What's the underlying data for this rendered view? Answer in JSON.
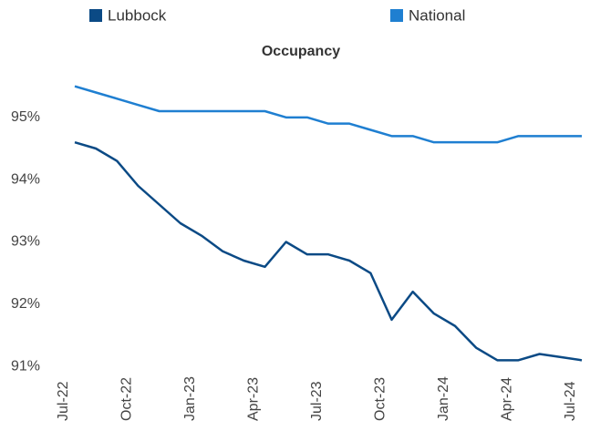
{
  "chart_data": {
    "type": "line",
    "title": "Occupancy",
    "categories": [
      "Jul-22",
      null,
      null,
      "Oct-22",
      null,
      null,
      "Jan-23",
      null,
      null,
      "Apr-23",
      null,
      null,
      "Jul-23",
      null,
      null,
      "Oct-23",
      null,
      null,
      "Jan-24",
      null,
      null,
      "Apr-24",
      null,
      null,
      "Jul-24"
    ],
    "series": [
      {
        "name": "Lubbock",
        "color": "#0b4a85",
        "values": [
          94.6,
          94.5,
          94.3,
          93.9,
          93.6,
          93.3,
          93.1,
          92.85,
          92.7,
          92.6,
          93.0,
          92.8,
          92.8,
          92.7,
          92.5,
          91.75,
          92.2,
          91.85,
          91.65,
          91.3,
          91.1,
          91.1,
          91.2,
          91.15,
          91.1
        ]
      },
      {
        "name": "National",
        "color": "#1f7fd1",
        "values": [
          95.5,
          95.4,
          95.3,
          95.2,
          95.1,
          95.1,
          95.1,
          95.1,
          95.1,
          95.1,
          95.0,
          95.0,
          94.9,
          94.9,
          94.8,
          94.7,
          94.7,
          94.6,
          94.6,
          94.6,
          94.6,
          94.7,
          94.7,
          94.7,
          94.7
        ]
      }
    ],
    "ylim": [
      90.9,
      95.7
    ],
    "yticks": [
      {
        "value": 91,
        "label": "91%"
      },
      {
        "value": 92,
        "label": "92%"
      },
      {
        "value": 93,
        "label": "93%"
      },
      {
        "value": 94,
        "label": "94%"
      },
      {
        "value": 95,
        "label": "95%"
      }
    ],
    "grid": false,
    "legend": "top"
  }
}
